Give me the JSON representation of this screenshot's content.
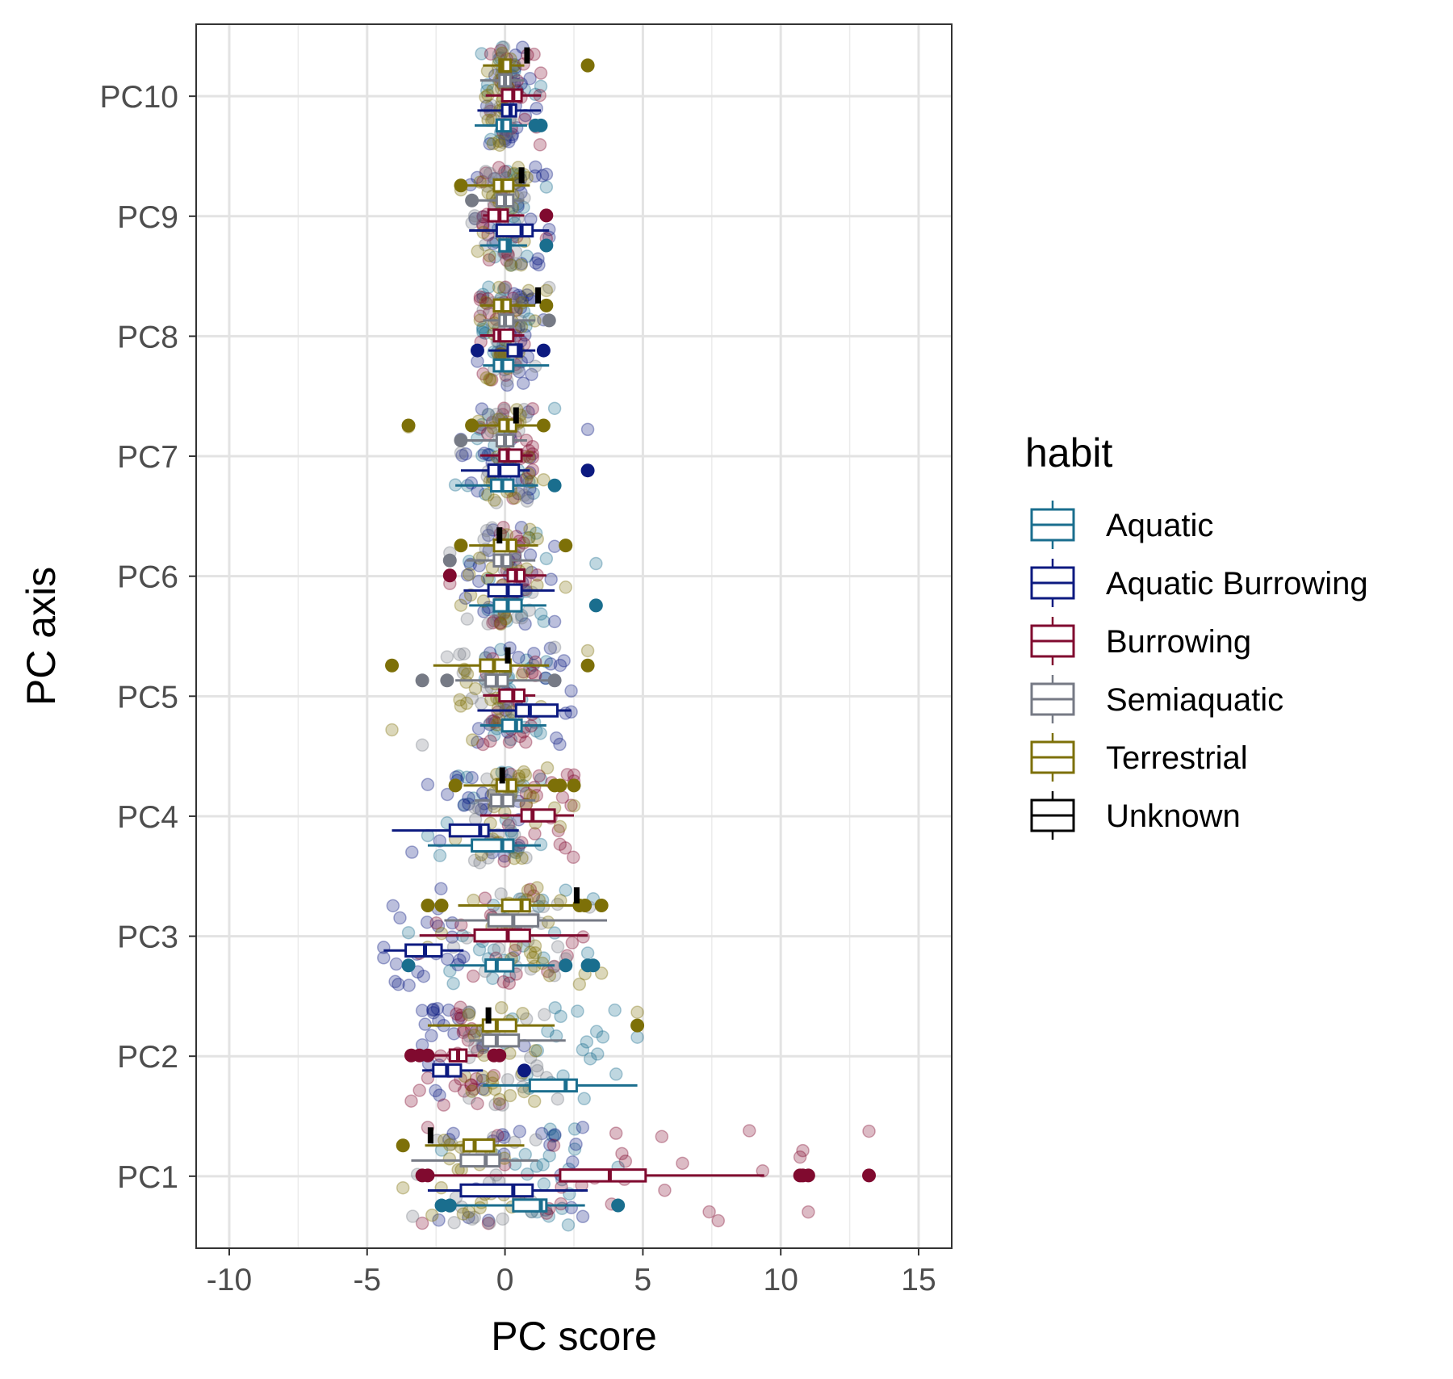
{
  "chart_data": {
    "type": "boxplot",
    "xlabel": "PC score",
    "ylabel": "PC axis",
    "xlim": [
      -11.2,
      16.2
    ],
    "x_ticks": [
      -10,
      -5,
      0,
      5,
      10,
      15
    ],
    "x_tick_labels": [
      "-10",
      "-5",
      "0",
      "5",
      "10",
      "15"
    ],
    "categories": [
      "PC1",
      "PC2",
      "PC3",
      "PC4",
      "PC5",
      "PC6",
      "PC7",
      "PC8",
      "PC9",
      "PC10"
    ],
    "grid": true,
    "legend": {
      "title": "habit",
      "placement": "right",
      "entries": [
        "Aquatic",
        "Aquatic Burrowing",
        "Burrowing",
        "Semiaquatic",
        "Terrestrial",
        "Unknown"
      ]
    },
    "series": [
      {
        "name": "Aquatic",
        "color": "#1a6e8e",
        "boxes": [
          {
            "axis": "PC1",
            "min": -2.3,
            "q1": 0.3,
            "median": 1.3,
            "q3": 1.5,
            "max": 2.9,
            "outliers": [
              -2.3,
              -2.0,
              4.1
            ]
          },
          {
            "axis": "PC2",
            "min": -0.8,
            "q1": 0.9,
            "median": 2.2,
            "q3": 2.6,
            "max": 4.8,
            "outliers": []
          },
          {
            "axis": "PC3",
            "min": -2.0,
            "q1": -0.7,
            "median": -0.3,
            "q3": 0.3,
            "max": 1.8,
            "outliers": [
              -3.5,
              2.2,
              3.0,
              3.2
            ]
          },
          {
            "axis": "PC4",
            "min": -2.8,
            "q1": -1.2,
            "median": -0.1,
            "q3": 0.3,
            "max": 1.3,
            "outliers": []
          },
          {
            "axis": "PC5",
            "min": -0.9,
            "q1": -0.1,
            "median": 0.4,
            "q3": 0.6,
            "max": 1.5,
            "outliers": []
          },
          {
            "axis": "PC6",
            "min": -1.3,
            "q1": -0.4,
            "median": 0.1,
            "q3": 0.6,
            "max": 1.5,
            "outliers": [
              3.3
            ]
          },
          {
            "axis": "PC7",
            "min": -1.8,
            "q1": -0.5,
            "median": -0.1,
            "q3": 0.3,
            "max": 1.2,
            "outliers": [
              1.8
            ]
          },
          {
            "axis": "PC8",
            "min": -0.8,
            "q1": -0.4,
            "median": -0.1,
            "q3": 0.3,
            "max": 1.6,
            "outliers": []
          },
          {
            "axis": "PC9",
            "min": -0.9,
            "q1": -0.2,
            "median": 0.1,
            "q3": 0.2,
            "max": 0.8,
            "outliers": [
              1.5
            ]
          },
          {
            "axis": "PC10",
            "min": -1.1,
            "q1": -0.3,
            "median": -0.1,
            "q3": 0.2,
            "max": 0.8,
            "outliers": [
              1.1,
              1.3
            ]
          }
        ]
      },
      {
        "name": "Aquatic Burrowing",
        "color": "#0c1a80",
        "boxes": [
          {
            "axis": "PC1",
            "min": -2.8,
            "q1": -1.6,
            "median": 0.3,
            "q3": 1.0,
            "max": 3.0,
            "outliers": []
          },
          {
            "axis": "PC2",
            "min": -3.0,
            "q1": -2.6,
            "median": -2.1,
            "q3": -1.6,
            "max": -0.8,
            "outliers": [
              0.7
            ]
          },
          {
            "axis": "PC3",
            "min": -4.4,
            "q1": -3.6,
            "median": -2.9,
            "q3": -2.3,
            "max": -1.5,
            "outliers": []
          },
          {
            "axis": "PC4",
            "min": -4.1,
            "q1": -2.0,
            "median": -0.9,
            "q3": -0.6,
            "max": 0.5,
            "outliers": []
          },
          {
            "axis": "PC5",
            "min": -1.0,
            "q1": 0.4,
            "median": 0.9,
            "q3": 1.9,
            "max": 2.4,
            "outliers": []
          },
          {
            "axis": "PC6",
            "min": -1.5,
            "q1": -0.6,
            "median": 0.1,
            "q3": 0.6,
            "max": 1.8,
            "outliers": []
          },
          {
            "axis": "PC7",
            "min": -1.6,
            "q1": -0.6,
            "median": -0.2,
            "q3": 0.5,
            "max": 0.9,
            "outliers": [
              3.0
            ]
          },
          {
            "axis": "PC8",
            "min": -0.6,
            "q1": 0.1,
            "median": 0.5,
            "q3": 0.6,
            "max": 1.1,
            "outliers": [
              -1.0,
              1.4
            ]
          },
          {
            "axis": "PC9",
            "min": -1.3,
            "q1": -0.3,
            "median": 0.6,
            "q3": 1.0,
            "max": 1.6,
            "outliers": []
          },
          {
            "axis": "PC10",
            "min": -1.0,
            "q1": -0.1,
            "median": 0.2,
            "q3": 0.4,
            "max": 1.3,
            "outliers": []
          }
        ]
      },
      {
        "name": "Burrowing",
        "color": "#800a2f",
        "boxes": [
          {
            "axis": "PC1",
            "min": -2.6,
            "q1": 2.0,
            "median": 3.8,
            "q3": 5.1,
            "max": 9.4,
            "outliers": [
              -3.0,
              -2.8,
              10.7,
              10.8,
              11.0,
              13.2
            ]
          },
          {
            "axis": "PC2",
            "min": -2.9,
            "q1": -2.0,
            "median": -1.7,
            "q3": -1.4,
            "max": -1.0,
            "outliers": [
              -3.4,
              -3.1,
              -2.8,
              -0.4,
              -0.2
            ]
          },
          {
            "axis": "PC3",
            "min": -3.1,
            "q1": -1.1,
            "median": 0.1,
            "q3": 0.9,
            "max": 3.0,
            "outliers": []
          },
          {
            "axis": "PC4",
            "min": -0.9,
            "q1": 0.6,
            "median": 1.0,
            "q3": 1.8,
            "max": 2.5,
            "outliers": []
          },
          {
            "axis": "PC5",
            "min": -0.8,
            "q1": -0.2,
            "median": 0.3,
            "q3": 0.7,
            "max": 1.1,
            "outliers": []
          },
          {
            "axis": "PC6",
            "min": -0.7,
            "q1": 0.1,
            "median": 0.4,
            "q3": 0.7,
            "max": 1.5,
            "outliers": [
              -2.0
            ]
          },
          {
            "axis": "PC7",
            "min": -0.9,
            "q1": -0.2,
            "median": 0.1,
            "q3": 0.6,
            "max": 1.0,
            "outliers": []
          },
          {
            "axis": "PC8",
            "min": -0.9,
            "q1": -0.4,
            "median": -0.2,
            "q3": 0.3,
            "max": 0.7,
            "outliers": []
          },
          {
            "axis": "PC9",
            "min": -0.8,
            "q1": -0.6,
            "median": -0.2,
            "q3": 0.1,
            "max": 0.7,
            "outliers": [
              1.5
            ]
          },
          {
            "axis": "PC10",
            "min": -0.7,
            "q1": -0.1,
            "median": 0.3,
            "q3": 0.6,
            "max": 1.3,
            "outliers": []
          }
        ]
      },
      {
        "name": "Semiaquatic",
        "color": "#767a85",
        "boxes": [
          {
            "axis": "PC1",
            "min": -3.4,
            "q1": -1.6,
            "median": -0.7,
            "q3": -0.2,
            "max": 1.2,
            "outliers": []
          },
          {
            "axis": "PC2",
            "min": -1.3,
            "q1": -0.8,
            "median": -0.3,
            "q3": 0.5,
            "max": 2.2,
            "outliers": []
          },
          {
            "axis": "PC3",
            "min": -2.2,
            "q1": -0.6,
            "median": 0.3,
            "q3": 1.2,
            "max": 3.7,
            "outliers": []
          },
          {
            "axis": "PC4",
            "min": -1.1,
            "q1": -0.5,
            "median": -0.1,
            "q3": 0.3,
            "max": 1.1,
            "outliers": []
          },
          {
            "axis": "PC5",
            "min": -1.8,
            "q1": -0.7,
            "median": -0.3,
            "q3": 0.1,
            "max": 1.7,
            "outliers": [
              -3.0,
              -2.1,
              1.8
            ]
          },
          {
            "axis": "PC6",
            "min": -1.4,
            "q1": -0.4,
            "median": -0.1,
            "q3": 0.2,
            "max": 1.1,
            "outliers": [
              -2.0
            ]
          },
          {
            "axis": "PC7",
            "min": -1.4,
            "q1": -0.3,
            "median": 0.0,
            "q3": 0.3,
            "max": 0.8,
            "outliers": [
              -1.6
            ]
          },
          {
            "axis": "PC8",
            "min": -0.8,
            "q1": -0.2,
            "median": 0.0,
            "q3": 0.3,
            "max": 1.1,
            "outliers": [
              1.6
            ]
          },
          {
            "axis": "PC9",
            "min": -1.1,
            "q1": -0.3,
            "median": 0.0,
            "q3": 0.3,
            "max": 0.7,
            "outliers": [
              -1.2
            ]
          },
          {
            "axis": "PC10",
            "min": -0.9,
            "q1": -0.2,
            "median": 0.0,
            "q3": 0.2,
            "max": 0.7,
            "outliers": []
          }
        ]
      },
      {
        "name": "Terrestrial",
        "color": "#7d7008",
        "boxes": [
          {
            "axis": "PC1",
            "min": -2.9,
            "q1": -1.5,
            "median": -1.1,
            "q3": -0.4,
            "max": 0.7,
            "outliers": [
              -3.7
            ]
          },
          {
            "axis": "PC2",
            "min": -2.8,
            "q1": -0.8,
            "median": -0.3,
            "q3": 0.4,
            "max": 1.8,
            "outliers": [
              4.8
            ]
          },
          {
            "axis": "PC3",
            "min": -1.7,
            "q1": -0.1,
            "median": 0.6,
            "q3": 0.9,
            "max": 2.6,
            "outliers": [
              -2.8,
              -2.3,
              2.7,
              2.9,
              3.5
            ]
          },
          {
            "axis": "PC4",
            "min": -1.5,
            "q1": -0.3,
            "median": 0.1,
            "q3": 0.4,
            "max": 1.6,
            "outliers": [
              -1.8,
              1.8,
              2.0,
              2.5
            ]
          },
          {
            "axis": "PC5",
            "min": -2.6,
            "q1": -0.9,
            "median": -0.4,
            "q3": 0.2,
            "max": 1.6,
            "outliers": [
              -4.1,
              3.0
            ]
          },
          {
            "axis": "PC6",
            "min": -1.3,
            "q1": -0.4,
            "median": 0.1,
            "q3": 0.4,
            "max": 1.2,
            "outliers": [
              -1.6,
              2.2
            ]
          },
          {
            "axis": "PC7",
            "min": -1.1,
            "q1": -0.2,
            "median": 0.1,
            "q3": 0.4,
            "max": 1.2,
            "outliers": [
              -3.5,
              -1.2,
              1.4
            ]
          },
          {
            "axis": "PC8",
            "min": -0.9,
            "q1": -0.4,
            "median": -0.1,
            "q3": 0.2,
            "max": 1.1,
            "outliers": [
              1.5
            ]
          },
          {
            "axis": "PC9",
            "min": -1.4,
            "q1": -0.4,
            "median": -0.1,
            "q3": 0.3,
            "max": 0.9,
            "outliers": [
              -1.6
            ]
          },
          {
            "axis": "PC10",
            "min": -0.8,
            "q1": -0.2,
            "median": -0.1,
            "q3": 0.2,
            "max": 0.7,
            "outliers": [
              3.0
            ]
          }
        ]
      },
      {
        "name": "Unknown",
        "color": "#000000",
        "boxes": [
          {
            "axis": "PC1",
            "value": -2.7
          },
          {
            "axis": "PC2",
            "value": -0.6
          },
          {
            "axis": "PC3",
            "value": 2.6
          },
          {
            "axis": "PC4",
            "value": -0.1
          },
          {
            "axis": "PC5",
            "value": 0.1
          },
          {
            "axis": "PC6",
            "value": -0.2
          },
          {
            "axis": "PC7",
            "value": 0.4
          },
          {
            "axis": "PC8",
            "value": 1.2
          },
          {
            "axis": "PC9",
            "value": 0.6
          },
          {
            "axis": "PC10",
            "value": 0.8
          }
        ]
      }
    ]
  }
}
